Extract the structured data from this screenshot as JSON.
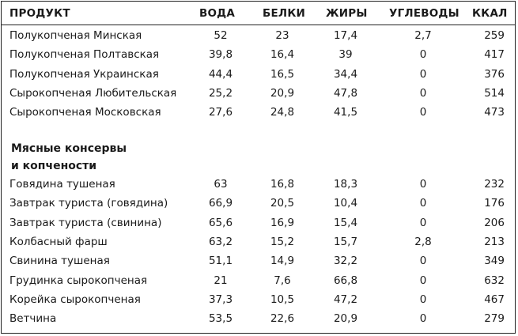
{
  "table": {
    "headers": [
      "ПРОДУКТ",
      "ВОДА",
      "БЕЛКИ",
      "ЖИРЫ",
      "УГЛЕВОДЫ",
      "ККАЛ"
    ],
    "group1": [
      {
        "product": "Полукопченая Минская",
        "water": "52",
        "protein": "23",
        "fat": "17,4",
        "carbs": "2,7",
        "kcal": "259"
      },
      {
        "product": "Полукопченая Полтавская",
        "water": "39,8",
        "protein": "16,4",
        "fat": "39",
        "carbs": "0",
        "kcal": "417"
      },
      {
        "product": "Полукопченая Украинская",
        "water": "44,4",
        "protein": "16,5",
        "fat": "34,4",
        "carbs": "0",
        "kcal": "376"
      },
      {
        "product": "Сырокопченая Любительская",
        "water": "25,2",
        "protein": "20,9",
        "fat": "47,8",
        "carbs": "0",
        "kcal": "514"
      },
      {
        "product": "Сырокопченая Московская",
        "water": "27,6",
        "protein": "24,8",
        "fat": "41,5",
        "carbs": "0",
        "kcal": "473"
      }
    ],
    "section_title_line1": "Мясные консервы",
    "section_title_line2": "и копчености",
    "group2": [
      {
        "product": "Говядина тушеная",
        "water": "63",
        "protein": "16,8",
        "fat": "18,3",
        "carbs": "0",
        "kcal": "232"
      },
      {
        "product": "Завтрак туриста (говядина)",
        "water": "66,9",
        "protein": "20,5",
        "fat": "10,4",
        "carbs": "0",
        "kcal": "176"
      },
      {
        "product": "Завтрак туриста (свинина)",
        "water": "65,6",
        "protein": "16,9",
        "fat": "15,4",
        "carbs": "0",
        "kcal": "206"
      },
      {
        "product": "Колбасный фарш",
        "water": "63,2",
        "protein": "15,2",
        "fat": "15,7",
        "carbs": "2,8",
        "kcal": "213"
      },
      {
        "product": "Свинина тушеная",
        "water": "51,1",
        "protein": "14,9",
        "fat": "32,2",
        "carbs": "0",
        "kcal": "349"
      },
      {
        "product": "Грудинка сырокопченая",
        "water": "21",
        "protein": "7,6",
        "fat": "66,8",
        "carbs": "0",
        "kcal": "632"
      },
      {
        "product": "Корейка сырокопченая",
        "water": "37,3",
        "protein": "10,5",
        "fat": "47,2",
        "carbs": "0",
        "kcal": "467"
      },
      {
        "product": "Ветчина",
        "water": "53,5",
        "protein": "22,6",
        "fat": "20,9",
        "carbs": "0",
        "kcal": "279"
      }
    ]
  }
}
